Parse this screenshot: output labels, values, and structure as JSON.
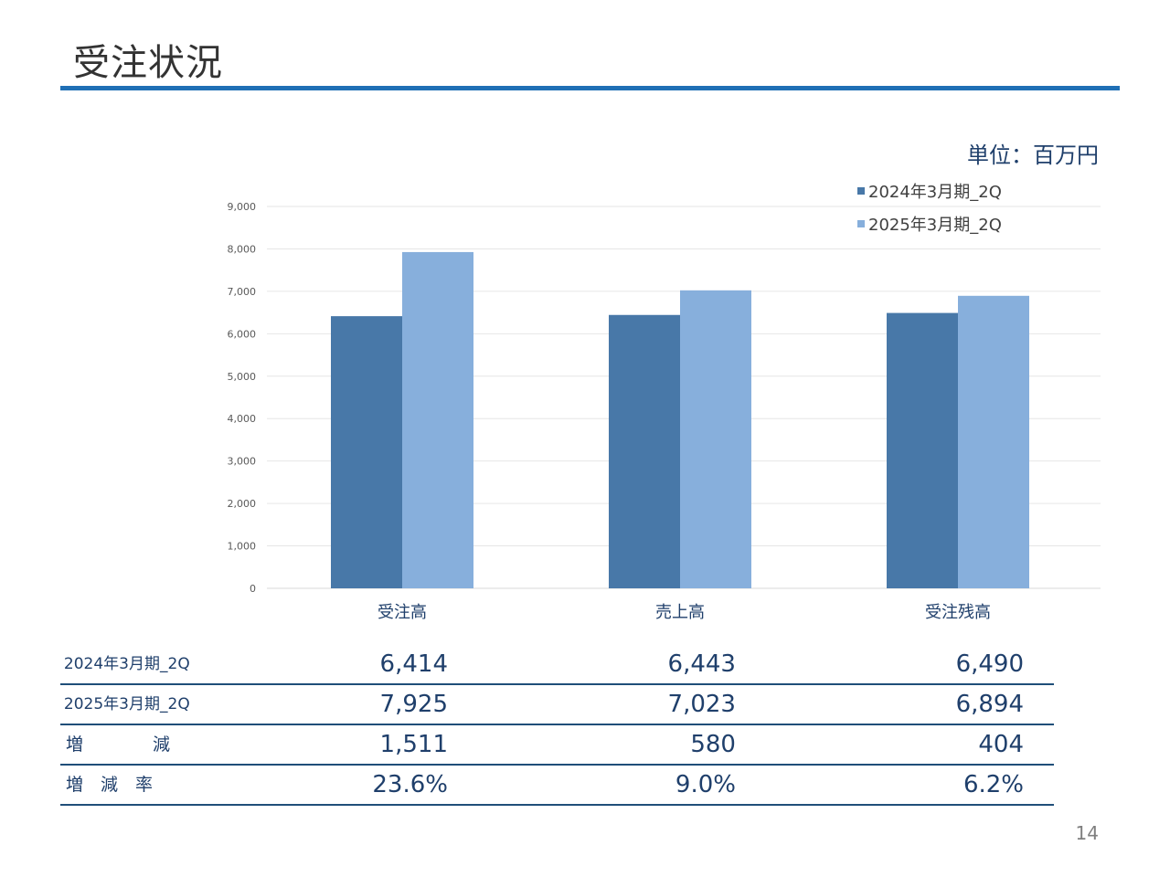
{
  "page": {
    "title": "受注状況",
    "unit": "単位：百万円",
    "page_number": "14"
  },
  "colors": {
    "series1": "#4878a8",
    "series2": "#87afdc",
    "accent": "#1f6fb5"
  },
  "chart_data": {
    "type": "bar",
    "categories": [
      "受注高",
      "売上高",
      "受注残高"
    ],
    "series": [
      {
        "name": "2024年3月期_2Q",
        "values": [
          6414,
          6443,
          6490
        ]
      },
      {
        "name": "2025年3月期_2Q",
        "values": [
          7925,
          7023,
          6894
        ]
      }
    ],
    "ylim": [
      0,
      9000
    ],
    "yticks": [
      "0",
      "1,000",
      "2,000",
      "3,000",
      "4,000",
      "5,000",
      "6,000",
      "7,000",
      "8,000",
      "9,000"
    ],
    "grid": true,
    "legend_position": "top-right"
  },
  "table": {
    "rows": [
      {
        "label": "2024年3月期_2Q",
        "values": [
          "6,414",
          "6,443",
          "6,490"
        ]
      },
      {
        "label": "2025年3月期_2Q",
        "values": [
          "7,925",
          "7,023",
          "6,894"
        ]
      },
      {
        "label": "増　　　　減",
        "values": [
          "1,511",
          "580",
          "404"
        ]
      },
      {
        "label": "増　減　率",
        "values": [
          "23.6%",
          "9.0%",
          "6.2%"
        ]
      }
    ]
  }
}
